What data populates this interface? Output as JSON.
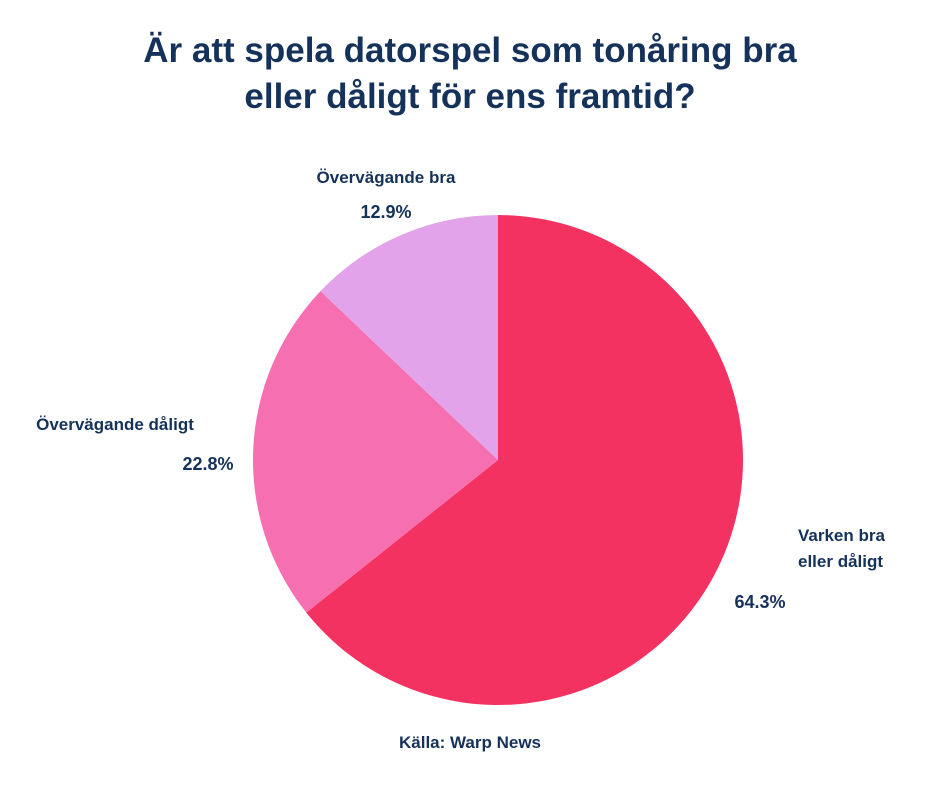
{
  "chart_data": {
    "type": "pie",
    "title_lines": [
      "Är att spela datorspel som tonåring bra",
      "eller dåligt för ens framtid?"
    ],
    "slices": [
      {
        "label_lines": [
          "Varken bra",
          "eller dåligt"
        ],
        "value": 64.3,
        "value_label": "64.3%",
        "color": "#f43262"
      },
      {
        "label_lines": [
          "Övervägande dåligt"
        ],
        "value": 22.8,
        "value_label": "22.8%",
        "color": "#f56fb1"
      },
      {
        "label_lines": [
          "Övervägande bra"
        ],
        "value": 12.9,
        "value_label": "12.9%",
        "color": "#e2a3ea"
      }
    ],
    "source": "Källa:  Warp News"
  }
}
